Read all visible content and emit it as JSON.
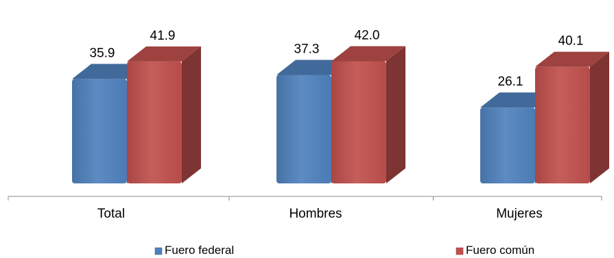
{
  "chart_data": {
    "type": "bar",
    "categories": [
      "Total",
      "Hombres",
      "Mujeres"
    ],
    "series": [
      {
        "name": "Fuero federal",
        "values": [
          35.9,
          37.3,
          26.1
        ],
        "value_labels": [
          "35.9",
          "37.3",
          "26.1"
        ],
        "color": "#4F81BD"
      },
      {
        "name": "Fuero común",
        "values": [
          41.9,
          42.0,
          40.1
        ],
        "value_labels": [
          "41.9",
          "42.0",
          "40.1"
        ],
        "color": "#C0504D"
      }
    ],
    "title": "",
    "xlabel": "",
    "ylabel": "",
    "ylim": [
      0,
      45
    ],
    "grid": false,
    "legend": "bottom",
    "style": "3d-column"
  }
}
